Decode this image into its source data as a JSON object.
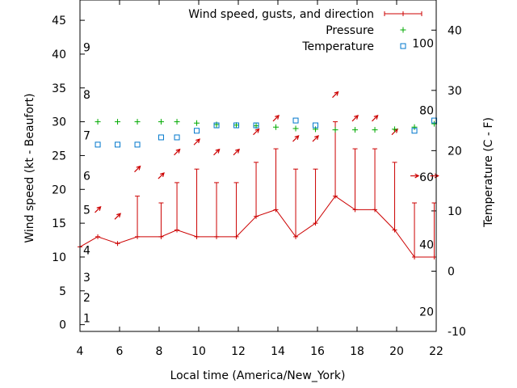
{
  "chart_data": {
    "type": "line",
    "title": "",
    "xlabel": "Local time (America/New_York)",
    "ylabel": "Wind speed (kt - Beaufort)",
    "y2label": "Temperature (C - F)",
    "xlim": [
      4,
      22
    ],
    "ylim": [
      -1,
      48
    ],
    "y2lim": [
      -10,
      45
    ],
    "x_ticks": [
      4,
      6,
      8,
      10,
      12,
      14,
      16,
      18,
      20,
      22
    ],
    "y_ticks": [
      0,
      5,
      10,
      15,
      20,
      25,
      30,
      35,
      40,
      45
    ],
    "y2_ticks": [
      -10,
      0,
      10,
      20,
      30,
      40
    ],
    "legend": {
      "position": "top-right",
      "entries": [
        "Wind speed, gusts, and direction",
        "Pressure",
        "Temperature"
      ]
    },
    "beaufort_labels": [
      {
        "label": "1",
        "y": 1
      },
      {
        "label": "2",
        "y": 4
      },
      {
        "label": "3",
        "y": 7
      },
      {
        "label": "4",
        "y": 11
      },
      {
        "label": "5",
        "y": 17
      },
      {
        "label": "6",
        "y": 22
      },
      {
        "label": "7",
        "y": 28
      },
      {
        "label": "8",
        "y": 34
      },
      {
        "label": "9",
        "y": 41
      }
    ],
    "fahrenheit_labels": [
      {
        "label": "20",
        "y2": -6.7
      },
      {
        "label": "40",
        "y2": 4.4
      },
      {
        "label": "60",
        "y2": 15.6
      },
      {
        "label": "80",
        "y2": 26.7
      },
      {
        "label": "100",
        "y2": 37.8
      }
    ],
    "series": [
      {
        "name": "Wind speed, gusts, and direction",
        "color": "#cc0000",
        "x": [
          4,
          4.9,
          5.9,
          6.9,
          8.1,
          8.9,
          9.9,
          10.9,
          11.9,
          12.9,
          13.9,
          14.9,
          15.9,
          16.9,
          17.9,
          18.9,
          19.9,
          20.9,
          21.9
        ],
        "y": [
          11.5,
          13,
          12,
          13,
          13,
          14,
          13,
          13,
          13,
          16,
          17,
          13,
          15,
          19,
          17,
          17,
          14,
          10,
          10
        ],
        "gusts": [
          null,
          null,
          null,
          19,
          18,
          21,
          23,
          21,
          21,
          24,
          26,
          23,
          23,
          30,
          26,
          26,
          24,
          18,
          18
        ],
        "direction_deg": [
          null,
          225,
          225,
          225,
          225,
          225,
          225,
          225,
          225,
          225,
          225,
          225,
          225,
          225,
          225,
          225,
          225,
          270,
          270
        ],
        "arrow_y": [
          null,
          17,
          16,
          23,
          22,
          25.5,
          27,
          25.5,
          25.5,
          28.5,
          30.5,
          27.5,
          27.5,
          34,
          30.5,
          30.5,
          28.5,
          22,
          22
        ]
      },
      {
        "name": "Pressure",
        "color": "#00aa00",
        "x": [
          4.9,
          5.9,
          6.9,
          8.1,
          8.9,
          9.9,
          10.9,
          11.9,
          12.9,
          13.9,
          14.9,
          15.9,
          16.9,
          17.9,
          18.9,
          19.9,
          20.9,
          21.9
        ],
        "y": [
          30,
          30,
          30,
          30,
          30,
          29.8,
          29.6,
          29.5,
          29.4,
          29.2,
          29,
          28.9,
          28.8,
          28.8,
          28.8,
          28.9,
          29.2,
          29.7
        ]
      },
      {
        "name": "Temperature",
        "color": "#0077cc",
        "axis": "y2",
        "x": [
          4.9,
          5.9,
          6.9,
          8.1,
          8.9,
          9.9,
          10.9,
          11.9,
          12.9,
          13.9,
          14.9,
          15.9,
          16.9,
          17.9,
          18.9,
          19.9,
          20.9,
          21.9
        ],
        "y": [
          21,
          21,
          21,
          22.2,
          22.2,
          23.3,
          24.2,
          24.2,
          24.2,
          null,
          25,
          24.2,
          null,
          null,
          null,
          null,
          23.3,
          25
        ]
      }
    ]
  }
}
